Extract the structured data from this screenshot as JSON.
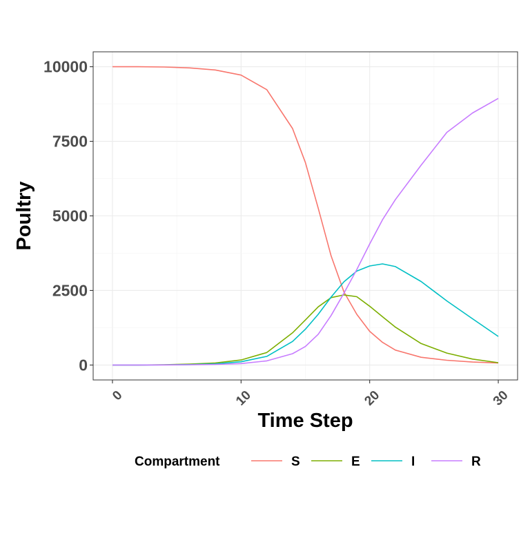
{
  "chart_data": {
    "type": "line",
    "xlabel": "Time Step",
    "ylabel": "Poultry",
    "xlim": [
      -1.5,
      31.5
    ],
    "ylim": [
      -500,
      10500
    ],
    "x_ticks": [
      0,
      10,
      20,
      30
    ],
    "y_ticks": [
      0,
      2500,
      5000,
      7500,
      10000
    ],
    "x_tick_labels": [
      "0",
      "10",
      "20",
      "30"
    ],
    "y_tick_labels": [
      "0",
      "2500",
      "5000",
      "7500",
      "10000"
    ],
    "grid": true,
    "legend_position": "bottom",
    "legend": {
      "title": "Compartment",
      "labels": [
        "S",
        "E",
        "I",
        "R"
      ]
    },
    "x": [
      0,
      2,
      4,
      6,
      8,
      10,
      12,
      14,
      15,
      16,
      17,
      18,
      19,
      20,
      21,
      22,
      24,
      26,
      28,
      30
    ],
    "series": [
      {
        "name": "S",
        "color": "#F8766D",
        "values": [
          10000,
          10000,
          9990,
          9960,
          9890,
          9720,
          9230,
          7930,
          6790,
          5260,
          3660,
          2450,
          1700,
          1130,
          760,
          500,
          260,
          160,
          100,
          70
        ]
      },
      {
        "name": "E",
        "color": "#7CAE00",
        "values": [
          0,
          0,
          10,
          30,
          70,
          170,
          420,
          1080,
          1510,
          1950,
          2260,
          2350,
          2290,
          1970,
          1620,
          1270,
          720,
          400,
          200,
          80
        ]
      },
      {
        "name": "I",
        "color": "#00BFC4",
        "values": [
          0,
          0,
          5,
          15,
          40,
          110,
          290,
          790,
          1200,
          1700,
          2280,
          2790,
          3150,
          3320,
          3390,
          3300,
          2800,
          2150,
          1550,
          960
        ]
      },
      {
        "name": "R",
        "color": "#C77CFF",
        "values": [
          0,
          0,
          3,
          10,
          20,
          50,
          140,
          380,
          620,
          1030,
          1660,
          2410,
          3200,
          4060,
          4870,
          5550,
          6700,
          7800,
          8450,
          8940
        ]
      }
    ]
  }
}
